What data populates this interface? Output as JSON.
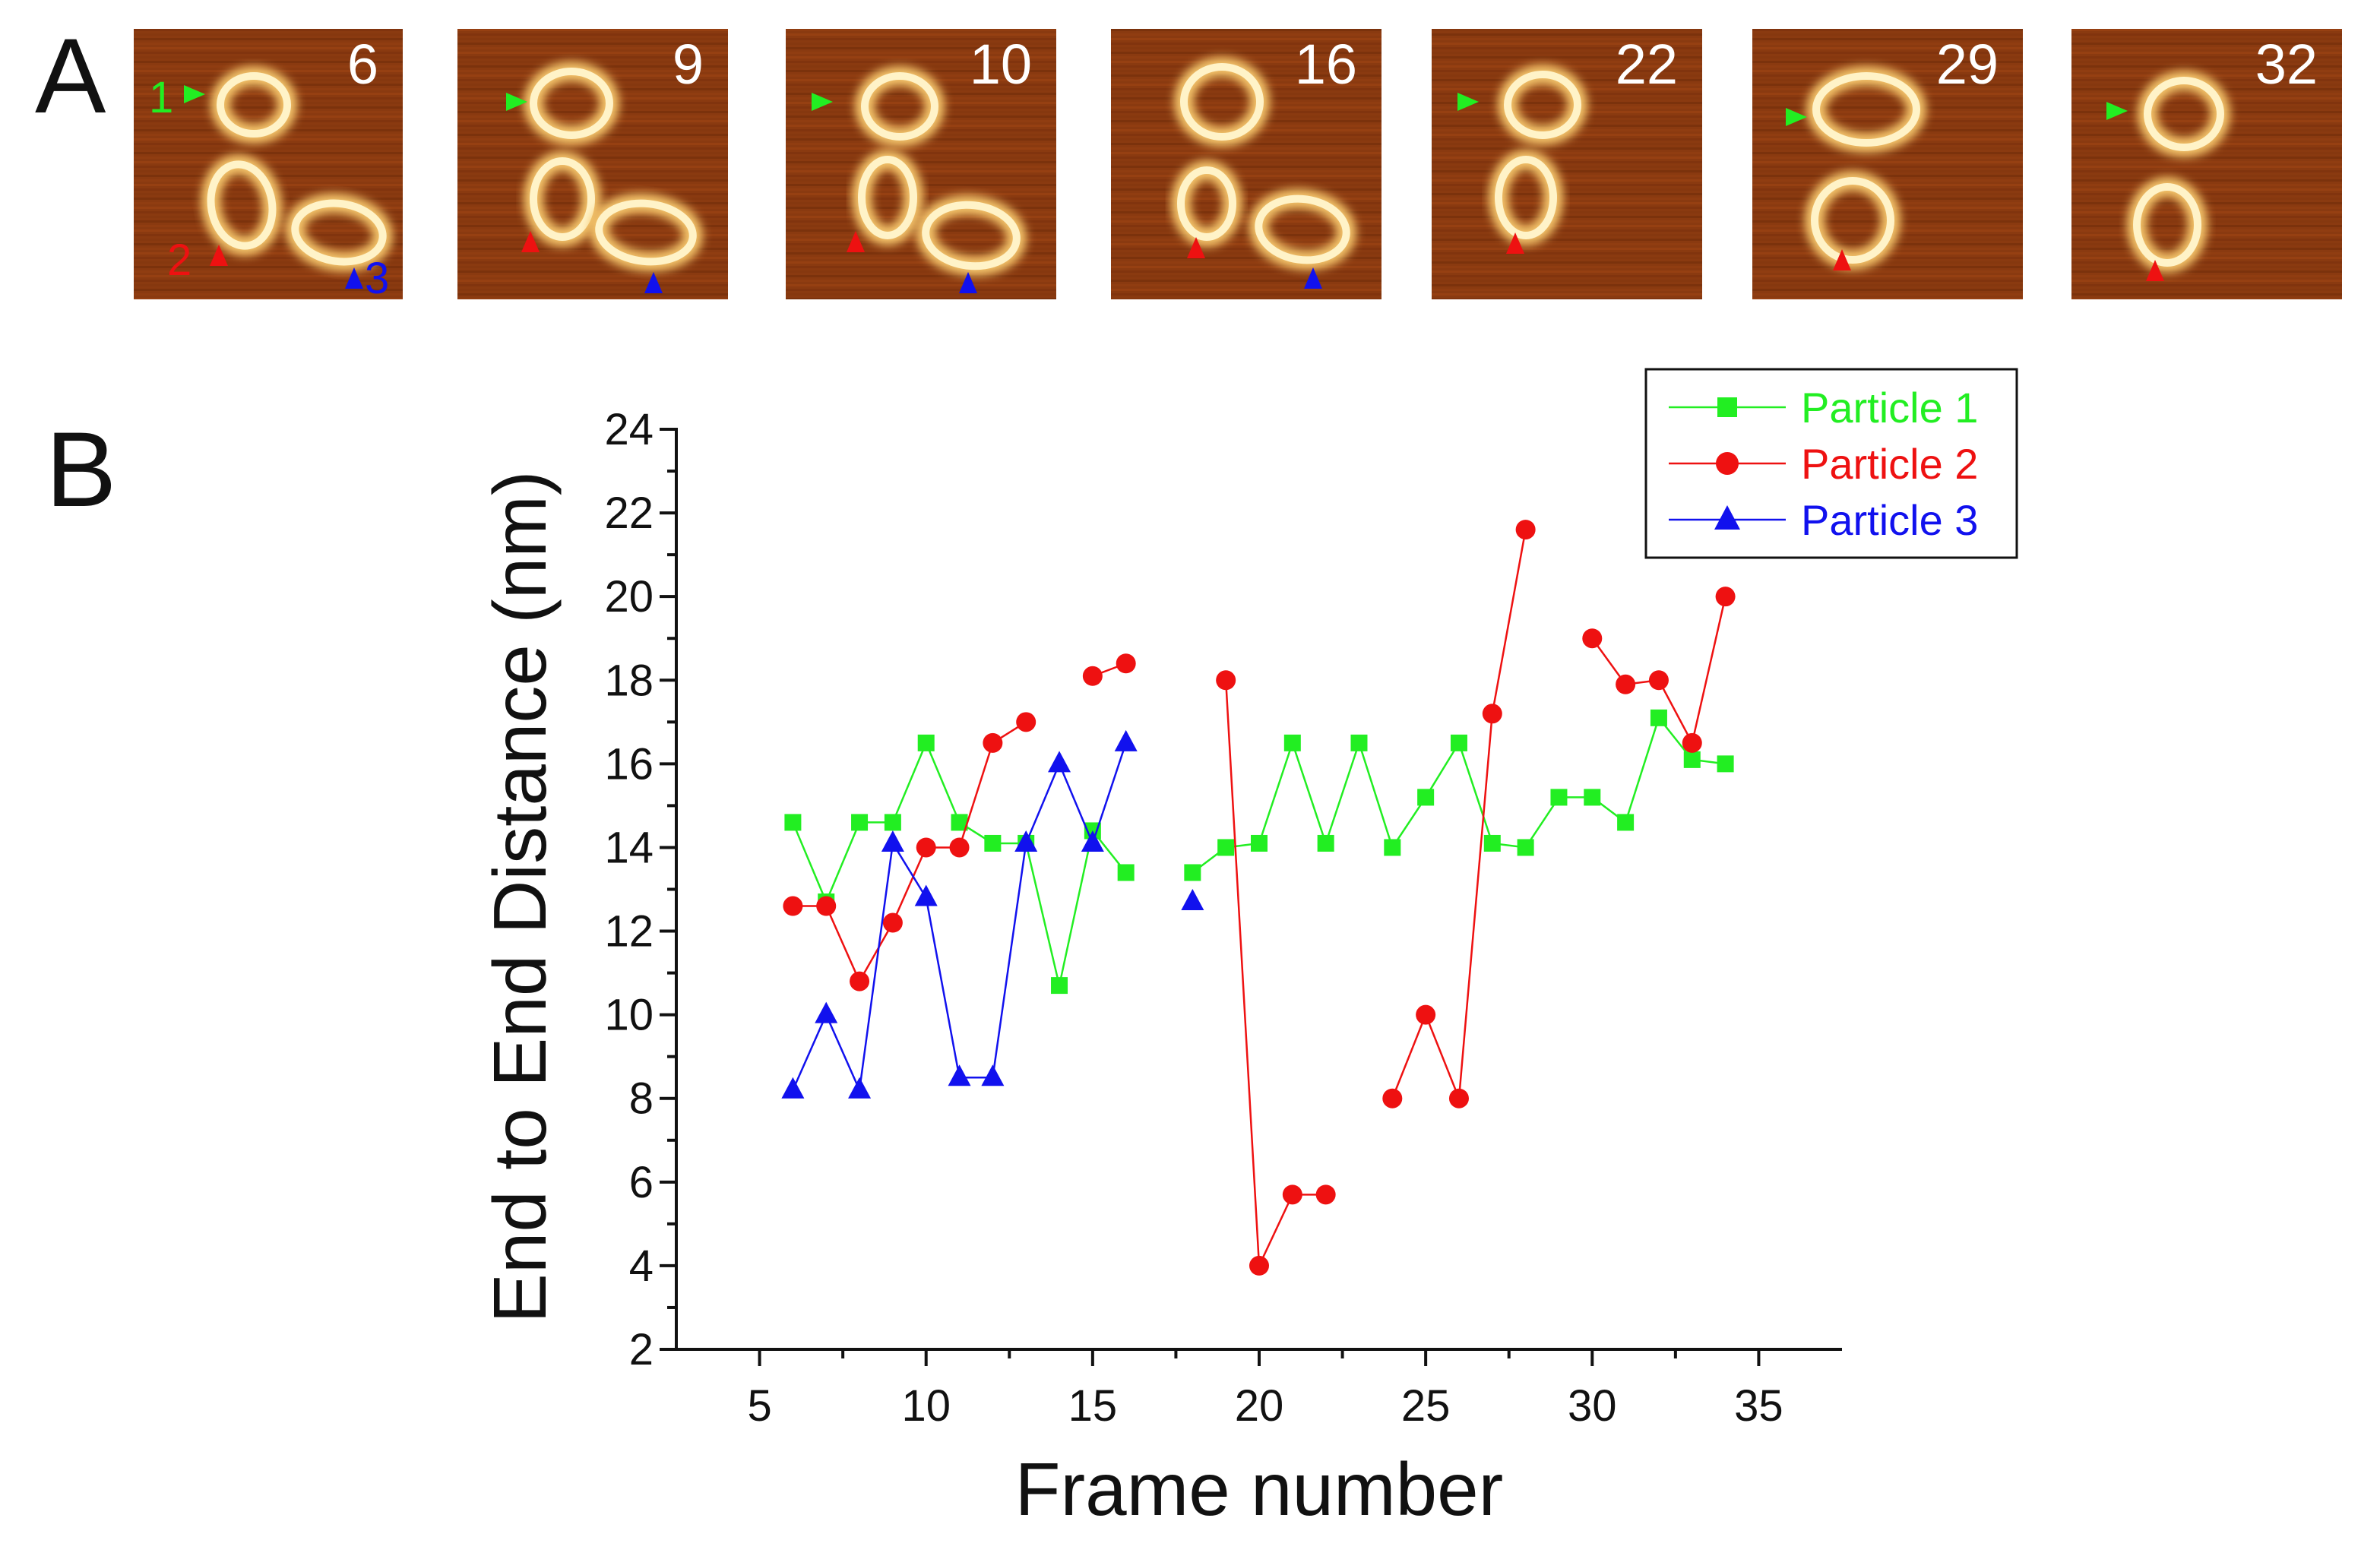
{
  "figure": {
    "panel_a_letter": "A",
    "panel_b_letter": "B"
  },
  "afm_frames": [
    {
      "frame": "6",
      "markers": [
        {
          "particle": "1",
          "label": "1",
          "color": "#22ee22",
          "dir": "left"
        },
        {
          "particle": "2",
          "label": "2",
          "color": "#ee1111",
          "dir": "up"
        },
        {
          "particle": "3",
          "label": "3",
          "color": "#1111ee",
          "dir": "up"
        }
      ]
    },
    {
      "frame": "9",
      "markers": [
        {
          "particle": "1",
          "color": "#22ee22",
          "dir": "left"
        },
        {
          "particle": "2",
          "color": "#ee1111",
          "dir": "up"
        },
        {
          "particle": "3",
          "color": "#1111ee",
          "dir": "up"
        }
      ]
    },
    {
      "frame": "10",
      "markers": [
        {
          "particle": "1",
          "color": "#22ee22",
          "dir": "left"
        },
        {
          "particle": "2",
          "color": "#ee1111",
          "dir": "up"
        },
        {
          "particle": "3",
          "color": "#1111ee",
          "dir": "up"
        }
      ]
    },
    {
      "frame": "16",
      "markers": [
        {
          "particle": "2",
          "color": "#ee1111",
          "dir": "up"
        },
        {
          "particle": "3",
          "color": "#1111ee",
          "dir": "up"
        }
      ]
    },
    {
      "frame": "22",
      "markers": [
        {
          "particle": "1",
          "color": "#22ee22",
          "dir": "left"
        },
        {
          "particle": "2",
          "color": "#ee1111",
          "dir": "up"
        }
      ]
    },
    {
      "frame": "29",
      "markers": [
        {
          "particle": "1",
          "color": "#22ee22",
          "dir": "left"
        },
        {
          "particle": "2",
          "color": "#ee1111",
          "dir": "up"
        }
      ]
    },
    {
      "frame": "32",
      "markers": [
        {
          "particle": "1",
          "color": "#22ee22",
          "dir": "left"
        },
        {
          "particle": "2",
          "color": "#ee1111",
          "dir": "up"
        }
      ]
    }
  ],
  "chart_data": {
    "type": "line",
    "title": "",
    "xlabel": "Frame number",
    "ylabel": "End to End Distance (nm)",
    "xlim": [
      2.5,
      37.5
    ],
    "ylim": [
      2,
      24
    ],
    "xticks": [
      5,
      10,
      15,
      20,
      25,
      30,
      35
    ],
    "yticks": [
      2,
      4,
      6,
      8,
      10,
      12,
      14,
      16,
      18,
      20,
      22,
      24
    ],
    "grid": false,
    "legend_position": "top-right",
    "series": [
      {
        "name": "Particle 1",
        "color": "#22ee22",
        "marker": "square",
        "points": [
          [
            6,
            14.6
          ],
          [
            7,
            12.7
          ],
          [
            8,
            14.6
          ],
          [
            9,
            14.6
          ],
          [
            10,
            16.5
          ],
          [
            11,
            14.6
          ],
          [
            12,
            14.1
          ],
          [
            13,
            14.1
          ],
          [
            14,
            10.7
          ],
          [
            15,
            14.4
          ],
          [
            16,
            13.4
          ],
          [
            18,
            13.4
          ],
          [
            19,
            14.0
          ],
          [
            20,
            14.1
          ],
          [
            21,
            16.5
          ],
          [
            22,
            14.1
          ],
          [
            23,
            16.5
          ],
          [
            24,
            14.0
          ],
          [
            25,
            15.2
          ],
          [
            26,
            16.5
          ],
          [
            27,
            14.1
          ],
          [
            28,
            14.0
          ],
          [
            29,
            15.2
          ],
          [
            30,
            15.2
          ],
          [
            31,
            14.6
          ],
          [
            32,
            17.1
          ],
          [
            33,
            16.1
          ],
          [
            34,
            16.0
          ]
        ],
        "segments": [
          [
            6,
            16
          ],
          [
            18,
            34
          ]
        ]
      },
      {
        "name": "Particle 2",
        "color": "#ee1111",
        "marker": "circle",
        "points": [
          [
            6,
            12.6
          ],
          [
            7,
            12.6
          ],
          [
            8,
            10.8
          ],
          [
            9,
            12.2
          ],
          [
            10,
            14.0
          ],
          [
            11,
            14.0
          ],
          [
            12,
            16.5
          ],
          [
            13,
            17.0
          ],
          [
            15,
            18.1
          ],
          [
            16,
            18.4
          ],
          [
            19,
            18.0
          ],
          [
            20,
            4.0
          ],
          [
            21,
            5.7
          ],
          [
            22,
            5.7
          ],
          [
            24,
            8.0
          ],
          [
            25,
            10.0
          ],
          [
            26,
            8.0
          ],
          [
            27,
            17.2
          ],
          [
            28,
            21.6
          ],
          [
            30,
            19.0
          ],
          [
            31,
            17.9
          ],
          [
            32,
            18.0
          ],
          [
            33,
            16.5
          ],
          [
            34,
            20.0
          ]
        ],
        "segments": [
          [
            6,
            13
          ],
          [
            15,
            16
          ],
          [
            19,
            22
          ],
          [
            24,
            28
          ],
          [
            30,
            34
          ]
        ]
      },
      {
        "name": "Particle 3",
        "color": "#1111ee",
        "marker": "triangle",
        "points": [
          [
            6,
            8.2
          ],
          [
            7,
            10.0
          ],
          [
            8,
            8.2
          ],
          [
            9,
            14.1
          ],
          [
            10,
            12.8
          ],
          [
            11,
            8.5
          ],
          [
            12,
            8.5
          ],
          [
            13,
            14.1
          ],
          [
            14,
            16.0
          ],
          [
            15,
            14.1
          ],
          [
            16,
            16.5
          ],
          [
            18,
            12.7
          ]
        ],
        "segments": [
          [
            6,
            16
          ],
          [
            18,
            18
          ]
        ]
      }
    ]
  }
}
